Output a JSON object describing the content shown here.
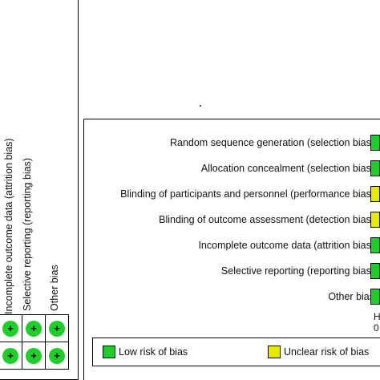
{
  "colors": {
    "low": "#1fce2b",
    "unclear": "#e8e800",
    "border": "#000000"
  },
  "left_panel": {
    "column_labels": [
      "Incomplete outcome data (attrition bias)",
      "Selective reporting (reporting bias)",
      "Other bias"
    ],
    "rows": [
      [
        "+",
        "+",
        "+"
      ],
      [
        "+",
        "+",
        "+"
      ]
    ]
  },
  "right_panel": {
    "domains": [
      {
        "label": "Random sequence generation (selection bias)",
        "rating": "low"
      },
      {
        "label": "Allocation concealment (selection bias)",
        "rating": "low"
      },
      {
        "label": "Blinding of participants and personnel (performance bias)",
        "rating": "unclear"
      },
      {
        "label": "Blinding of outcome assessment (detection bias)",
        "rating": "unclear"
      },
      {
        "label": "Incomplete outcome data (attrition bias)",
        "rating": "low"
      },
      {
        "label": "Selective reporting (reporting bias)",
        "rating": "low"
      },
      {
        "label": "Other bias",
        "rating": "low"
      }
    ],
    "axis_fragments": [
      "H",
      "0"
    ],
    "legend": [
      {
        "label": "Low risk of bias",
        "color_key": "low"
      },
      {
        "label": "Unclear risk of bias",
        "color_key": "unclear"
      }
    ]
  }
}
